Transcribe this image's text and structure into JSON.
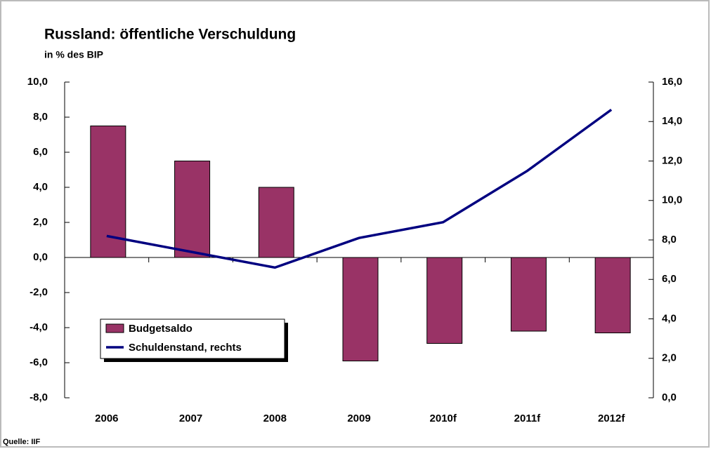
{
  "chart_data": {
    "type": "bar+line",
    "title": "Russland: öffentliche Verschuldung",
    "subtitle": "in % des BIP",
    "source": "Quelle: IIF",
    "categories": [
      "2006",
      "2007",
      "2008",
      "2009",
      "2010f",
      "2011f",
      "2012f"
    ],
    "series": [
      {
        "name": "Budgetsaldo",
        "color": "#993366",
        "type": "bar",
        "values": [
          7.5,
          5.5,
          4.0,
          -5.9,
          -4.9,
          -4.2,
          -4.3
        ]
      },
      {
        "name": "Schuldenstand, rechts",
        "color": "#000080",
        "type": "line",
        "axis": "y2",
        "values": [
          8.2,
          7.4,
          6.6,
          8.1,
          8.9,
          11.5,
          14.6
        ]
      }
    ],
    "ylim": [
      -8,
      10
    ],
    "yticks": [
      {
        "value": -8,
        "label": "-8,0"
      },
      {
        "value": -6,
        "label": "-6,0"
      },
      {
        "value": -4,
        "label": "-4,0"
      },
      {
        "value": -2,
        "label": "-2,0"
      },
      {
        "value": 0,
        "label": "0,0"
      },
      {
        "value": 2,
        "label": "2,0"
      },
      {
        "value": 4,
        "label": "4,0"
      },
      {
        "value": 6,
        "label": "6,0"
      },
      {
        "value": 8,
        "label": "8,0"
      },
      {
        "value": 10,
        "label": "10,0"
      }
    ],
    "y2lim": [
      0,
      16
    ],
    "y2ticks": [
      {
        "value": 0,
        "label": "0,0"
      },
      {
        "value": 2,
        "label": "2,0"
      },
      {
        "value": 4,
        "label": "4,0"
      },
      {
        "value": 6,
        "label": "6,0"
      },
      {
        "value": 8,
        "label": "8,0"
      },
      {
        "value": 10,
        "label": "10,0"
      },
      {
        "value": 12,
        "label": "12,0"
      },
      {
        "value": 14,
        "label": "14,0"
      },
      {
        "value": 16,
        "label": "16,0"
      }
    ],
    "legend": "lower left"
  }
}
